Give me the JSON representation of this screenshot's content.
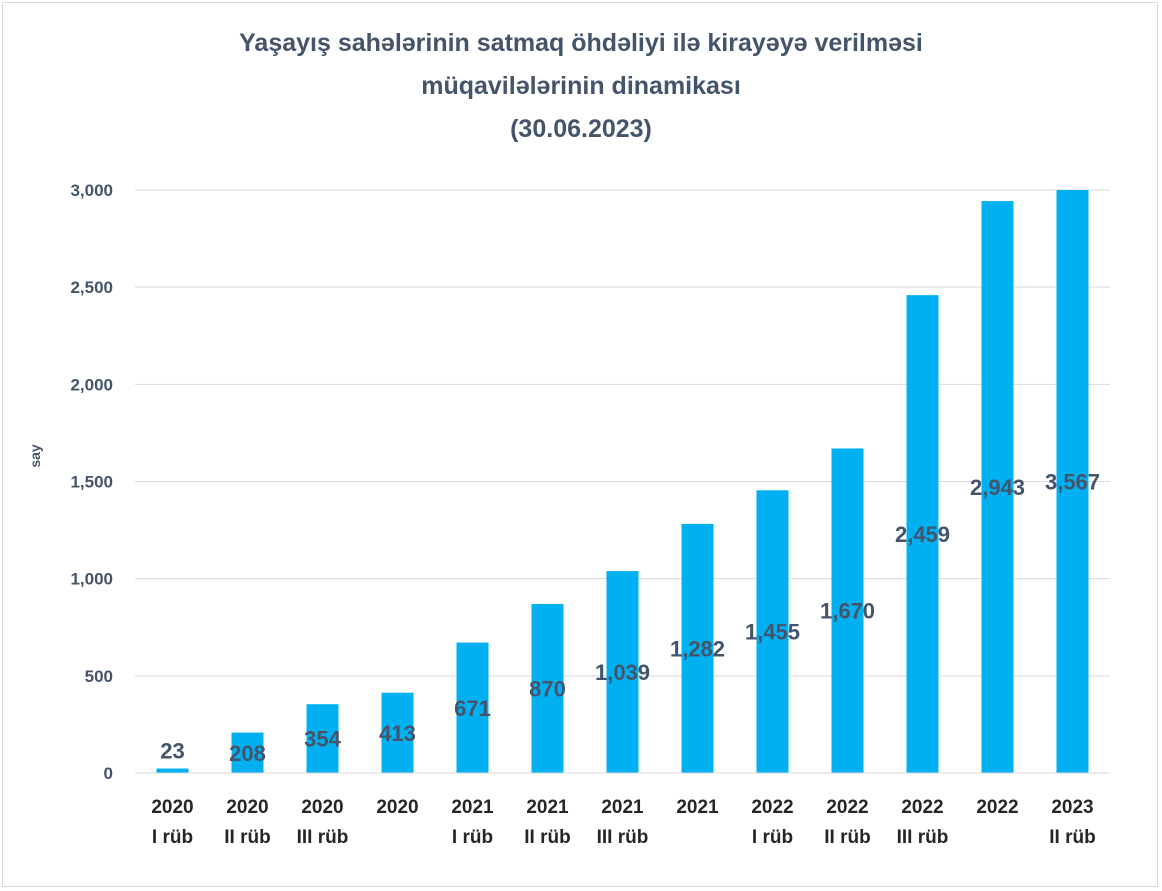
{
  "title_lines": [
    "Yaşayış sahələrinin satmaq öhdəliyi ilə kirayəyə verilməsi",
    "müqavilələrinin dinamikası",
    "(30.06.2023)"
  ],
  "colors": {
    "bar": "#00b0f0",
    "grid": "#d9d9d9",
    "text": "#44546a"
  },
  "chart_data": {
    "type": "bar",
    "title": "Yaşayış sahələrinin satmaq öhdəliyi ilə kirayəyə verilməsi müqavilələrinin dinamikası (30.06.2023)",
    "xlabel": "",
    "ylabel": "say",
    "ylim": [
      0,
      3000
    ],
    "y_ticks": [
      0,
      500,
      1000,
      1500,
      2000,
      2500,
      3000
    ],
    "y_tick_labels": [
      "0",
      "500",
      "1,000",
      "1,500",
      "2,000",
      "2,500",
      "3,000"
    ],
    "grid": true,
    "legend": "none",
    "categories": [
      [
        "2020",
        "I rüb"
      ],
      [
        "2020",
        "II rüb"
      ],
      [
        "2020",
        "III rüb"
      ],
      [
        "2020",
        ""
      ],
      [
        "2021",
        "I rüb"
      ],
      [
        "2021",
        "II rüb"
      ],
      [
        "2021",
        "III rüb"
      ],
      [
        "2021",
        ""
      ],
      [
        "2022",
        "I rüb"
      ],
      [
        "2022",
        "II rüb"
      ],
      [
        "2022",
        "III rüb"
      ],
      [
        "2022",
        ""
      ],
      [
        "2023",
        "II rüb"
      ]
    ],
    "values": [
      23,
      208,
      354,
      413,
      671,
      870,
      1039,
      1282,
      1455,
      1670,
      2459,
      2943,
      3567
    ],
    "data_labels": [
      "23",
      "208",
      "354",
      "413",
      "671",
      "870",
      "1,039",
      "1,282",
      "1,455",
      "1,670",
      "2,459",
      "2,943",
      "3,567"
    ]
  }
}
